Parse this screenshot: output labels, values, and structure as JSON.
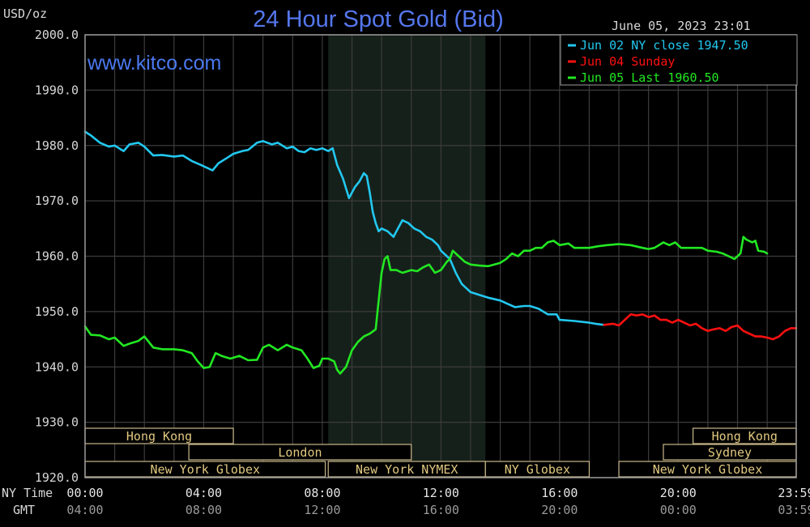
{
  "header": {
    "unit_label": "USD/oz",
    "title": "24 Hour Spot Gold (Bid)",
    "timestamp": "June 05, 2023 23:01",
    "watermark": "www.kitco.com"
  },
  "legend": [
    {
      "text": "Jun 02 NY close 1947.50",
      "color": "#22c8f0"
    },
    {
      "text": "Jun 04 Sunday",
      "color": "#ff1010"
    },
    {
      "text": "Jun 05 Last 1960.50",
      "color": "#22e822"
    }
  ],
  "axis_rows": {
    "ny_label": "NY Time",
    "gmt_label": "GMT"
  },
  "markets": [
    {
      "name": "Hong Kong",
      "row": 0,
      "start": 0.0,
      "end": 5.0
    },
    {
      "name": "Hong Kong",
      "row": 0,
      "start": 20.5,
      "end": 23.98
    },
    {
      "name": "London",
      "row": 1,
      "start": 3.5,
      "end": 11.0
    },
    {
      "name": "Sydney",
      "row": 1,
      "start": 19.5,
      "end": 23.98
    },
    {
      "name": "New York Globex",
      "row": 2,
      "start": 0.0,
      "end": 8.1
    },
    {
      "name": "New York NYMEX",
      "row": 2,
      "start": 8.2,
      "end": 13.5
    },
    {
      "name": "NY Globex",
      "row": 2,
      "start": 13.5,
      "end": 17.0
    },
    {
      "name": "New York Globex",
      "row": 2,
      "start": 18.0,
      "end": 23.98
    }
  ],
  "chart_data": {
    "type": "line",
    "title": "24 Hour Spot Gold (Bid)",
    "ylabel": "USD/oz",
    "xlabel": "NY Time",
    "ylim": [
      1920,
      2000
    ],
    "xlim": [
      0,
      23.98
    ],
    "grid": true,
    "legend_position": "top-right",
    "highlight_region": [
      8.2,
      13.5
    ],
    "y_ticks": [
      "1920.0",
      "1930.0",
      "1940.0",
      "1950.0",
      "1960.0",
      "1970.0",
      "1980.0",
      "1990.0",
      "2000.0"
    ],
    "y_tick_values": [
      1920,
      1930,
      1940,
      1950,
      1960,
      1970,
      1980,
      1990,
      2000
    ],
    "x_tick_values": [
      0,
      4,
      8,
      12,
      16,
      20,
      23.98
    ],
    "x_ticks_ny": [
      "00:00",
      "04:00",
      "08:00",
      "12:00",
      "16:00",
      "20:00",
      "23:59"
    ],
    "x_ticks_gmt": [
      "04:00",
      "08:00",
      "12:00",
      "16:00",
      "20:00",
      "00:00",
      "03:59"
    ],
    "series": [
      {
        "name": "Jun 02 NY close 1947.50",
        "color": "#22c8f0",
        "points": [
          [
            0.0,
            1982.5
          ],
          [
            0.2,
            1981.8
          ],
          [
            0.5,
            1980.5
          ],
          [
            0.8,
            1979.8
          ],
          [
            1.0,
            1980.0
          ],
          [
            1.3,
            1979.0
          ],
          [
            1.5,
            1980.2
          ],
          [
            1.8,
            1980.5
          ],
          [
            2.0,
            1979.8
          ],
          [
            2.3,
            1978.2
          ],
          [
            2.6,
            1978.3
          ],
          [
            3.0,
            1978.0
          ],
          [
            3.3,
            1978.2
          ],
          [
            3.6,
            1977.2
          ],
          [
            3.9,
            1976.5
          ],
          [
            4.1,
            1976.0
          ],
          [
            4.3,
            1975.5
          ],
          [
            4.5,
            1976.8
          ],
          [
            4.8,
            1977.8
          ],
          [
            5.0,
            1978.5
          ],
          [
            5.3,
            1979.0
          ],
          [
            5.5,
            1979.2
          ],
          [
            5.8,
            1980.5
          ],
          [
            6.0,
            1980.8
          ],
          [
            6.3,
            1980.2
          ],
          [
            6.5,
            1980.5
          ],
          [
            6.8,
            1979.5
          ],
          [
            7.0,
            1979.8
          ],
          [
            7.2,
            1979.0
          ],
          [
            7.4,
            1978.8
          ],
          [
            7.6,
            1979.5
          ],
          [
            7.8,
            1979.2
          ],
          [
            8.0,
            1979.5
          ],
          [
            8.2,
            1979.0
          ],
          [
            8.35,
            1979.5
          ],
          [
            8.5,
            1976.5
          ],
          [
            8.7,
            1974.0
          ],
          [
            8.9,
            1970.5
          ],
          [
            9.1,
            1972.5
          ],
          [
            9.25,
            1973.5
          ],
          [
            9.4,
            1975.0
          ],
          [
            9.5,
            1974.5
          ],
          [
            9.6,
            1971.5
          ],
          [
            9.7,
            1968.0
          ],
          [
            9.8,
            1966.0
          ],
          [
            9.9,
            1964.5
          ],
          [
            10.0,
            1965.0
          ],
          [
            10.2,
            1964.5
          ],
          [
            10.4,
            1963.5
          ],
          [
            10.5,
            1964.5
          ],
          [
            10.6,
            1965.5
          ],
          [
            10.7,
            1966.5
          ],
          [
            10.9,
            1966.0
          ],
          [
            11.1,
            1965.0
          ],
          [
            11.3,
            1964.5
          ],
          [
            11.5,
            1963.5
          ],
          [
            11.7,
            1963.0
          ],
          [
            11.9,
            1962.0
          ],
          [
            12.0,
            1961.0
          ],
          [
            12.1,
            1960.5
          ],
          [
            12.3,
            1959.5
          ],
          [
            12.5,
            1957.0
          ],
          [
            12.7,
            1955.0
          ],
          [
            13.0,
            1953.5
          ],
          [
            13.3,
            1953.0
          ],
          [
            13.6,
            1952.5
          ],
          [
            14.0,
            1952.0
          ],
          [
            14.2,
            1951.5
          ],
          [
            14.5,
            1950.8
          ],
          [
            14.8,
            1951.0
          ],
          [
            15.0,
            1951.0
          ],
          [
            15.3,
            1950.5
          ],
          [
            15.6,
            1949.5
          ],
          [
            15.9,
            1949.5
          ],
          [
            16.0,
            1948.5
          ],
          [
            16.5,
            1948.3
          ],
          [
            17.0,
            1948.0
          ],
          [
            17.2,
            1947.8
          ],
          [
            17.5,
            1947.6
          ]
        ]
      },
      {
        "name": "Jun 04 Sunday",
        "color": "#ff1010",
        "points": [
          [
            17.5,
            1947.6
          ],
          [
            17.8,
            1947.8
          ],
          [
            18.0,
            1947.5
          ],
          [
            18.2,
            1948.5
          ],
          [
            18.4,
            1949.5
          ],
          [
            18.6,
            1949.3
          ],
          [
            18.8,
            1949.5
          ],
          [
            19.0,
            1949.0
          ],
          [
            19.2,
            1949.3
          ],
          [
            19.4,
            1948.5
          ],
          [
            19.6,
            1948.5
          ],
          [
            19.8,
            1948.0
          ],
          [
            20.0,
            1948.5
          ],
          [
            20.2,
            1948.0
          ],
          [
            20.4,
            1947.5
          ],
          [
            20.6,
            1947.8
          ],
          [
            20.8,
            1947.0
          ],
          [
            21.0,
            1946.5
          ],
          [
            21.2,
            1946.8
          ],
          [
            21.4,
            1947.0
          ],
          [
            21.6,
            1946.5
          ],
          [
            21.8,
            1947.2
          ],
          [
            22.0,
            1947.5
          ],
          [
            22.2,
            1946.5
          ],
          [
            22.4,
            1946.0
          ],
          [
            22.6,
            1945.5
          ],
          [
            22.8,
            1945.5
          ],
          [
            23.0,
            1945.3
          ],
          [
            23.2,
            1945.0
          ],
          [
            23.4,
            1945.5
          ],
          [
            23.6,
            1946.5
          ],
          [
            23.8,
            1947.0
          ],
          [
            23.98,
            1947.0
          ]
        ]
      },
      {
        "name": "Jun 05 Last 1960.50",
        "color": "#22e822",
        "points": [
          [
            0.0,
            1947.3
          ],
          [
            0.2,
            1945.8
          ],
          [
            0.5,
            1945.7
          ],
          [
            0.8,
            1945.0
          ],
          [
            1.0,
            1945.3
          ],
          [
            1.3,
            1943.8
          ],
          [
            1.5,
            1944.2
          ],
          [
            1.8,
            1944.7
          ],
          [
            2.0,
            1945.5
          ],
          [
            2.3,
            1943.5
          ],
          [
            2.6,
            1943.2
          ],
          [
            3.0,
            1943.2
          ],
          [
            3.3,
            1943.0
          ],
          [
            3.6,
            1942.5
          ],
          [
            3.8,
            1941.0
          ],
          [
            4.0,
            1939.8
          ],
          [
            4.2,
            1940.0
          ],
          [
            4.4,
            1942.5
          ],
          [
            4.6,
            1942.0
          ],
          [
            4.9,
            1941.5
          ],
          [
            5.2,
            1942.0
          ],
          [
            5.5,
            1941.2
          ],
          [
            5.8,
            1941.3
          ],
          [
            6.0,
            1943.5
          ],
          [
            6.2,
            1944.0
          ],
          [
            6.5,
            1943.0
          ],
          [
            6.8,
            1944.0
          ],
          [
            7.0,
            1943.5
          ],
          [
            7.3,
            1943.0
          ],
          [
            7.5,
            1941.5
          ],
          [
            7.7,
            1939.8
          ],
          [
            7.9,
            1940.2
          ],
          [
            8.0,
            1941.5
          ],
          [
            8.2,
            1941.5
          ],
          [
            8.4,
            1941.0
          ],
          [
            8.5,
            1939.5
          ],
          [
            8.6,
            1938.8
          ],
          [
            8.8,
            1940.0
          ],
          [
            9.0,
            1943.0
          ],
          [
            9.2,
            1944.5
          ],
          [
            9.4,
            1945.5
          ],
          [
            9.6,
            1946.0
          ],
          [
            9.8,
            1946.8
          ],
          [
            9.9,
            1952.0
          ],
          [
            10.0,
            1957.0
          ],
          [
            10.1,
            1959.5
          ],
          [
            10.2,
            1960.0
          ],
          [
            10.3,
            1957.5
          ],
          [
            10.5,
            1957.5
          ],
          [
            10.7,
            1957.0
          ],
          [
            11.0,
            1957.5
          ],
          [
            11.2,
            1957.3
          ],
          [
            11.4,
            1958.0
          ],
          [
            11.6,
            1958.5
          ],
          [
            11.8,
            1957.0
          ],
          [
            12.0,
            1957.5
          ],
          [
            12.2,
            1959.0
          ],
          [
            12.3,
            1959.5
          ],
          [
            12.4,
            1961.0
          ],
          [
            12.6,
            1960.0
          ],
          [
            12.8,
            1959.0
          ],
          [
            13.0,
            1958.5
          ],
          [
            13.3,
            1958.3
          ],
          [
            13.6,
            1958.2
          ],
          [
            14.0,
            1958.8
          ],
          [
            14.2,
            1959.5
          ],
          [
            14.4,
            1960.5
          ],
          [
            14.6,
            1960.0
          ],
          [
            14.8,
            1961.0
          ],
          [
            15.0,
            1961.0
          ],
          [
            15.2,
            1961.5
          ],
          [
            15.4,
            1961.5
          ],
          [
            15.6,
            1962.5
          ],
          [
            15.8,
            1962.8
          ],
          [
            16.0,
            1962.0
          ],
          [
            16.3,
            1962.3
          ],
          [
            16.5,
            1961.5
          ],
          [
            16.8,
            1961.5
          ],
          [
            17.0,
            1961.5
          ],
          [
            17.3,
            1961.8
          ],
          [
            17.6,
            1962.0
          ],
          [
            18.0,
            1962.2
          ],
          [
            18.4,
            1962.0
          ],
          [
            18.8,
            1961.5
          ],
          [
            19.0,
            1961.3
          ],
          [
            19.2,
            1961.5
          ],
          [
            19.5,
            1962.5
          ],
          [
            19.7,
            1962.0
          ],
          [
            19.9,
            1962.5
          ],
          [
            20.1,
            1961.5
          ],
          [
            20.4,
            1961.5
          ],
          [
            20.6,
            1961.5
          ],
          [
            20.8,
            1961.5
          ],
          [
            21.0,
            1961.0
          ],
          [
            21.3,
            1960.8
          ],
          [
            21.5,
            1960.5
          ],
          [
            21.7,
            1960.0
          ],
          [
            21.9,
            1959.5
          ],
          [
            22.1,
            1960.5
          ],
          [
            22.2,
            1963.5
          ],
          [
            22.3,
            1963.0
          ],
          [
            22.5,
            1962.5
          ],
          [
            22.6,
            1962.8
          ],
          [
            22.7,
            1961.0
          ],
          [
            22.9,
            1960.8
          ],
          [
            23.0,
            1960.5
          ]
        ]
      }
    ]
  }
}
